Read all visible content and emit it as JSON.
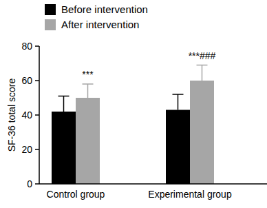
{
  "chart_data": {
    "type": "bar",
    "y_label": "SF-36 total score",
    "categories": [
      "Control group",
      "Experimental group"
    ],
    "series": [
      {
        "name": "Before intervention",
        "color": "#000000",
        "values": [
          42,
          43
        ],
        "errors": [
          9,
          9
        ]
      },
      {
        "name": "After intervention",
        "color": "#a6a6a6",
        "values": [
          50,
          60
        ],
        "errors": [
          8,
          9
        ],
        "annotations": [
          "***",
          "***###"
        ]
      }
    ],
    "ylim": [
      0,
      80
    ],
    "yticks": [
      0,
      20,
      40,
      60,
      80
    ],
    "grid": false,
    "legend": "top-left"
  }
}
